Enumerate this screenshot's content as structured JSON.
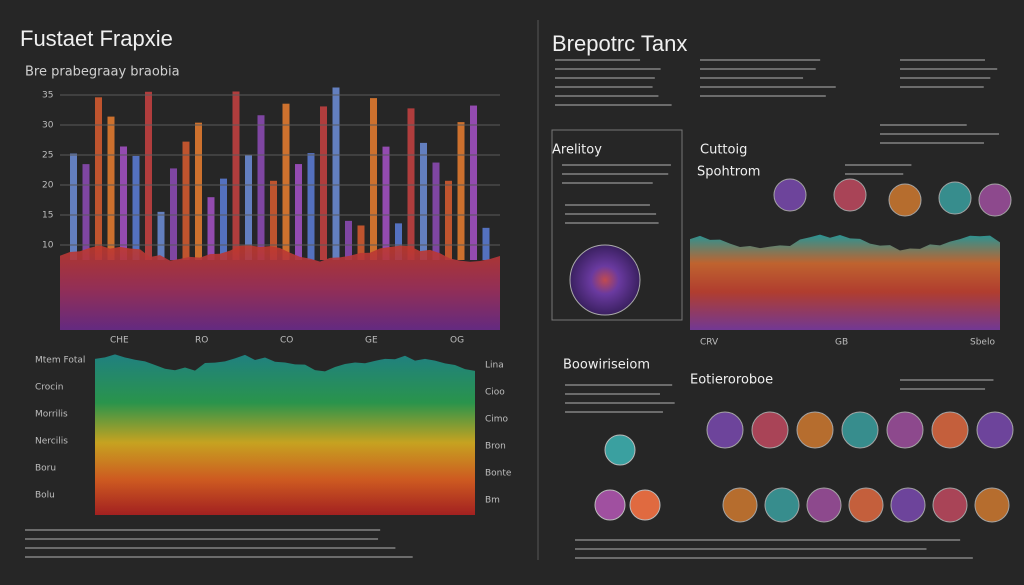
{
  "left": {
    "title": "Fustaet Frapxie",
    "subtitle": "Bre prabegraay braobia",
    "y_labels": [
      "35",
      "30",
      "25",
      "20",
      "15",
      "10"
    ],
    "x_labels": [
      "CHE",
      "RO",
      "CO",
      "GE",
      "OG"
    ],
    "lower_left_labels": [
      "Mtem Fotal",
      "Crocin",
      "Morrilis",
      "Nercilis",
      "Boru",
      "Bolu"
    ],
    "lower_right_labels": [
      "Lina",
      "Cioo",
      "Cimo",
      "Bron",
      "Bonte",
      "Bm"
    ]
  },
  "right": {
    "title": "Brepotrc Tanx",
    "sections": [
      "Arelitoy",
      "Cuttoig",
      "Spohtrom",
      "Boowiriseiom",
      "Eotieroroboe"
    ],
    "band_labels": [
      "CRV",
      "GB",
      "Sbelo"
    ]
  }
}
